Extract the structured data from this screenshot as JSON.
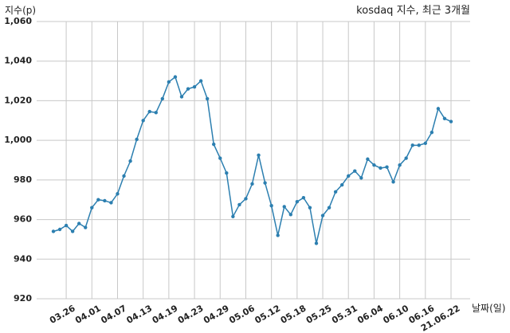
{
  "chart_data": {
    "type": "line",
    "title": "kosdaq 지수, 최근 3개월",
    "y_label": "지수(p)",
    "x_label": "날짜(일)",
    "categories": [
      null,
      null,
      "03.26",
      null,
      null,
      null,
      "04.01",
      null,
      null,
      null,
      "04.07",
      null,
      null,
      null,
      "04.13",
      null,
      null,
      null,
      "04.19",
      null,
      null,
      null,
      "04.23",
      null,
      null,
      null,
      "04.29",
      null,
      null,
      null,
      "05.06",
      null,
      null,
      null,
      "05.12",
      null,
      null,
      null,
      "05.18",
      null,
      null,
      null,
      "05.25",
      null,
      null,
      null,
      "05.31",
      null,
      null,
      null,
      "06.04",
      null,
      null,
      null,
      "06.10",
      null,
      null,
      null,
      "06.16",
      null,
      null,
      null,
      "21.06.22"
    ],
    "series": [
      {
        "name": "kosdaq",
        "color": "#2c7fb0",
        "values": [
          954,
          955,
          957,
          954,
          958,
          956,
          966,
          970,
          969.5,
          968.5,
          973,
          982,
          989.5,
          1000.5,
          1010,
          1014.5,
          1014,
          1021,
          1029.5,
          1032,
          1022,
          1026,
          1027,
          1030,
          1021,
          998,
          991,
          983.5,
          961.5,
          967.5,
          970.5,
          978,
          992.5,
          978.5,
          967,
          952,
          966.5,
          962.5,
          969,
          971,
          966,
          948,
          962,
          966,
          974,
          977.5,
          982,
          984.5,
          981,
          990.5,
          987.5,
          986,
          986.5,
          979,
          987.5,
          991,
          997.5,
          997.5,
          998.5,
          1004,
          1016,
          1011,
          1009.5
        ]
      }
    ],
    "ylim": [
      920,
      1060
    ],
    "yticks": [
      {
        "value": 920,
        "label": "920"
      },
      {
        "value": 940,
        "label": "940"
      },
      {
        "value": 960,
        "label": "960"
      },
      {
        "value": 980,
        "label": "980"
      },
      {
        "value": 1000,
        "label": "1,000"
      },
      {
        "value": 1020,
        "label": "1,020"
      },
      {
        "value": 1040,
        "label": "1,040"
      },
      {
        "value": 1060,
        "label": "1,060"
      }
    ],
    "grid": true
  }
}
